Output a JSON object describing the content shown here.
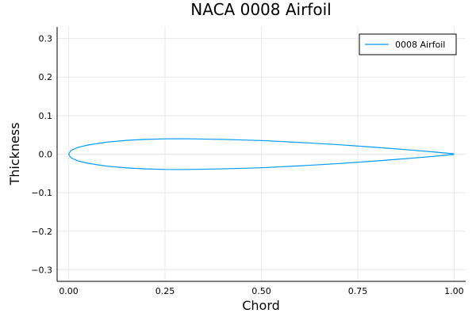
{
  "chart_data": {
    "type": "line",
    "title": "NACA 0008 Airfoil",
    "xlabel": "Chord",
    "ylabel": "Thickness",
    "xlim": [
      -0.03,
      1.03
    ],
    "ylim": [
      -0.33,
      0.33
    ],
    "xticks": [
      0.0,
      0.25,
      0.5,
      0.75,
      1.0
    ],
    "xtick_labels": [
      "0.00",
      "0.25",
      "0.50",
      "0.75",
      "1.00"
    ],
    "yticks": [
      -0.3,
      -0.2,
      -0.1,
      0.0,
      0.1,
      0.2,
      0.3
    ],
    "ytick_labels": [
      "−0.3",
      "−0.2",
      "−0.1",
      "0.0",
      "0.1",
      "0.2",
      "0.3"
    ],
    "grid": true,
    "legend_position": "top-right",
    "series": [
      {
        "name": "0008 Airfoil",
        "color": "#009AFA",
        "x": [
          1.0,
          0.95,
          0.9,
          0.8,
          0.7,
          0.6,
          0.5,
          0.4,
          0.3,
          0.25,
          0.2,
          0.15,
          0.1,
          0.075,
          0.05,
          0.025,
          0.0125,
          0.005,
          0.0,
          0.005,
          0.0125,
          0.025,
          0.05,
          0.075,
          0.1,
          0.15,
          0.2,
          0.25,
          0.3,
          0.4,
          0.5,
          0.6,
          0.7,
          0.8,
          0.9,
          0.95,
          1.0
        ],
        "y": [
          0.0008,
          0.0054,
          0.0096,
          0.0175,
          0.0245,
          0.0303,
          0.0353,
          0.0382,
          0.04,
          0.0397,
          0.0383,
          0.0357,
          0.0312,
          0.0277,
          0.0236,
          0.0178,
          0.0126,
          0.0085,
          0.0,
          -0.0085,
          -0.0126,
          -0.0178,
          -0.0236,
          -0.0277,
          -0.0312,
          -0.0357,
          -0.0383,
          -0.0397,
          -0.04,
          -0.0382,
          -0.0353,
          -0.0303,
          -0.0245,
          -0.0175,
          -0.0096,
          -0.0054,
          -0.0008
        ]
      }
    ]
  }
}
